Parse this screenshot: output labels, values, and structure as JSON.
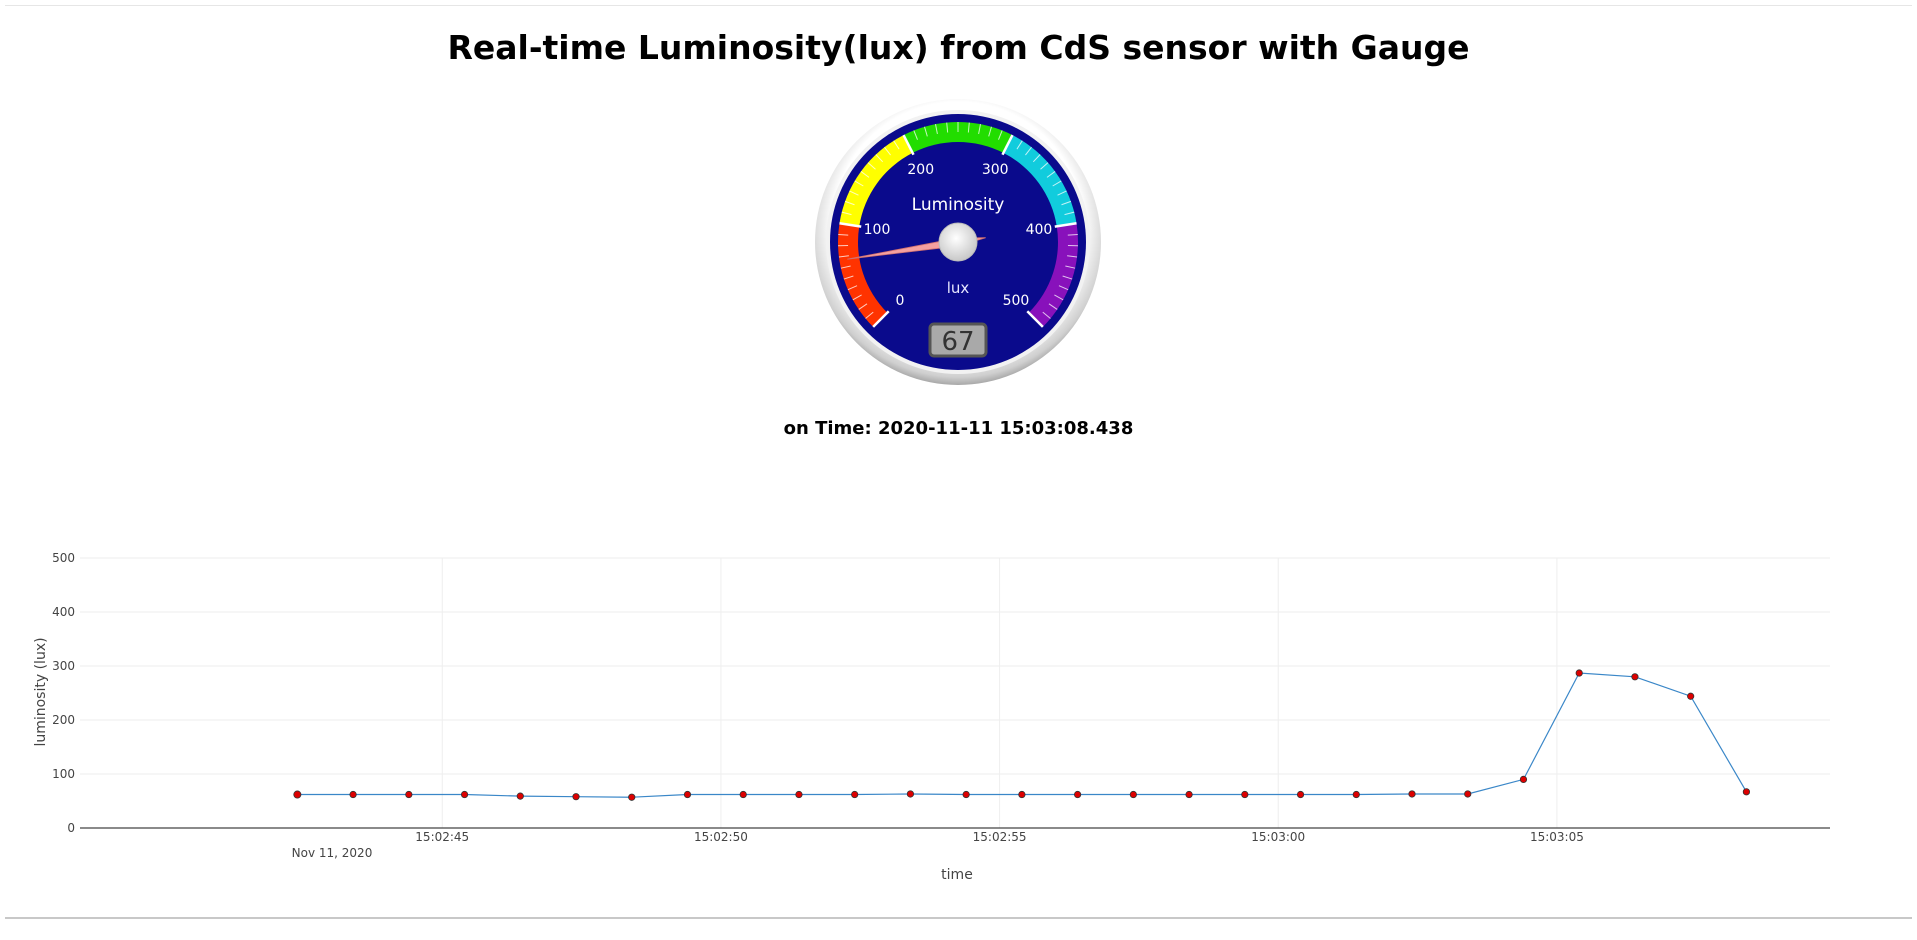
{
  "page": {
    "title": "Real-time Luminosity(lux) from CdS sensor with Gauge",
    "time_label": "on Time: 2020-11-11 15:03:08.438"
  },
  "gauge": {
    "title": "Luminosity",
    "units": "lux",
    "min": 0,
    "max": 500,
    "value": 67,
    "value_text": "67",
    "major_ticks": [
      "0",
      "100",
      "200",
      "300",
      "400",
      "500"
    ],
    "bands": [
      {
        "from": 0,
        "to": 100,
        "color": "#ff3300"
      },
      {
        "from": 100,
        "to": 200,
        "color": "#ffff00"
      },
      {
        "from": 200,
        "to": 300,
        "color": "#22dd00"
      },
      {
        "from": 300,
        "to": 400,
        "color": "#11ccdd"
      },
      {
        "from": 400,
        "to": 500,
        "color": "#8811bb"
      }
    ],
    "colors": {
      "plate": "#0a0a8c",
      "needle": "#f4a0a0",
      "rim": "#d8d8d8"
    }
  },
  "chart_data": {
    "type": "line",
    "xlabel": "time",
    "ylabel": "luminosity (lux)",
    "ylim": [
      0,
      500
    ],
    "y_ticks": [
      "0",
      "100",
      "200",
      "300",
      "400",
      "500"
    ],
    "x_ticks": [
      "15:02:45",
      "15:02:50",
      "15:02:55",
      "15:03:00",
      "15:03:05"
    ],
    "x_tick_values": [
      "15:02:45",
      "15:02:50",
      "15:02:55",
      "15:03:00",
      "15:03:05"
    ],
    "x_date_label": "Nov 11, 2020",
    "grid": true,
    "line_color": "#3a87c8",
    "marker_color": "#dd0000",
    "series": [
      {
        "x": [
          "15:02:42.4",
          "15:02:43.4",
          "15:02:44.4",
          "15:02:45.4",
          "15:02:46.4",
          "15:02:47.4",
          "15:02:48.4",
          "15:02:49.4",
          "15:02:50.4",
          "15:02:51.4",
          "15:02:52.4",
          "15:02:53.4",
          "15:02:54.4",
          "15:02:55.4",
          "15:02:56.4",
          "15:02:57.4",
          "15:02:58.4",
          "15:02:59.4",
          "15:03:00.4",
          "15:03:01.4",
          "15:03:02.4",
          "15:03:03.4",
          "15:03:04.4",
          "15:03:05.4",
          "15:03:06.4",
          "15:03:07.4",
          "15:03:08.4"
        ],
        "y": [
          62,
          62,
          62,
          62,
          59,
          58,
          57,
          62,
          62,
          62,
          62,
          63,
          62,
          62,
          62,
          62,
          62,
          62,
          62,
          62,
          63,
          63,
          90,
          287,
          280,
          244,
          67
        ]
      }
    ]
  }
}
